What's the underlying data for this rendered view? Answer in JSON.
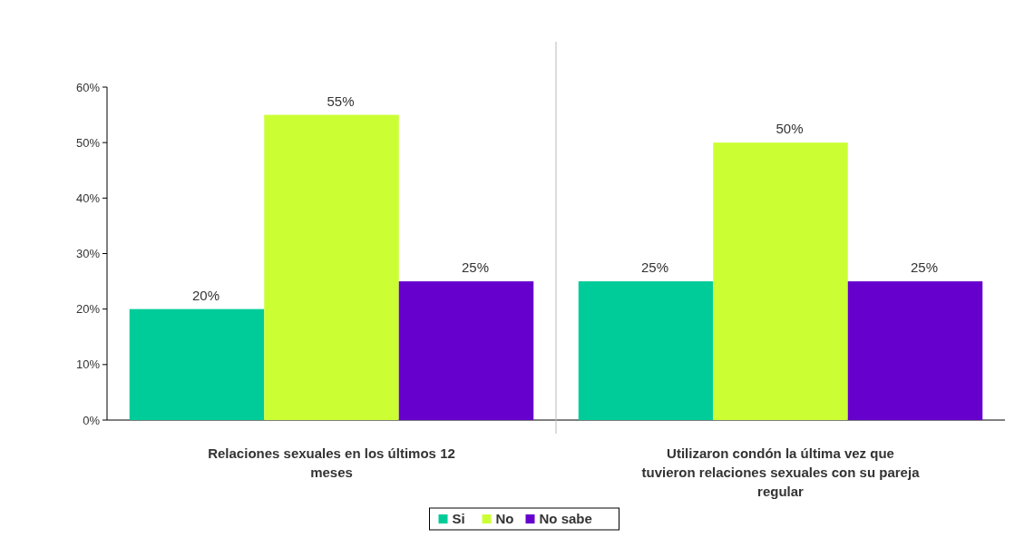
{
  "chart_data": {
    "type": "bar",
    "categories": [
      "Relaciones sexuales en los últimos 12 meses",
      "Utilizaron condón la última vez que tuvieron relaciones sexuales con su pareja regular"
    ],
    "series": [
      {
        "name": "Si",
        "color": "#00cc99",
        "values": [
          20,
          25
        ],
        "value_labels": [
          "20%",
          "25%"
        ]
      },
      {
        "name": "No",
        "color": "#ccff33",
        "values": [
          55,
          50
        ],
        "value_labels": [
          "55%",
          "50%"
        ]
      },
      {
        "name": "No sabe",
        "color": "#6600cc",
        "values": [
          25,
          25
        ],
        "value_labels": [
          "25%",
          "25%"
        ]
      }
    ],
    "ylim": [
      0,
      60
    ],
    "yticks": [
      {
        "value": 0,
        "label": "0%"
      },
      {
        "value": 10,
        "label": "10%"
      },
      {
        "value": 20,
        "label": "20%"
      },
      {
        "value": 30,
        "label": "30%"
      },
      {
        "value": 40,
        "label": "40%"
      },
      {
        "value": 50,
        "label": "50%"
      },
      {
        "value": 60,
        "label": "60%"
      }
    ],
    "grid": false,
    "legend": "bottom"
  }
}
